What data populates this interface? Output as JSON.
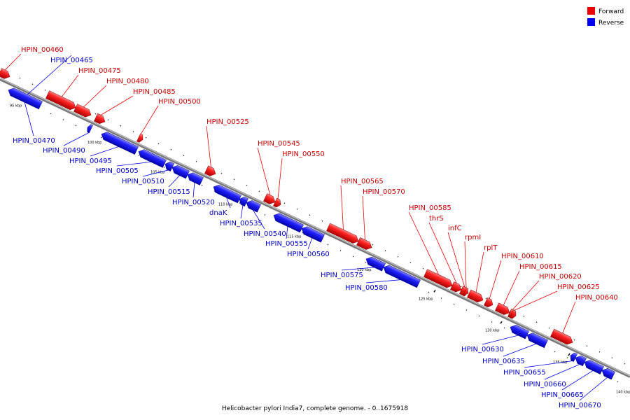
{
  "title": "Helicobacter pylori India7, complete genome. - 0..1675918",
  "legend": [
    {
      "label": "Forward",
      "color": "#ee0000"
    },
    {
      "label": "Reverse",
      "color": "#0000ee"
    }
  ],
  "colors": {
    "forward": "#ee0000",
    "reverse": "#0000ee"
  },
  "scale_labels": [
    "95 kbp",
    "100 kbp",
    "105 kbp",
    "110 kbp",
    "115 kbp",
    "120 kbp",
    "125 kbp",
    "130 kbp",
    "135 kbp",
    "140 kbp"
  ],
  "genes": [
    {
      "name": "HPIN_00460",
      "strand": "forward"
    },
    {
      "name": "HPIN_00465",
      "strand": "reverse"
    },
    {
      "name": "HPIN_00470",
      "strand": "reverse"
    },
    {
      "name": "HPIN_00475",
      "strand": "forward"
    },
    {
      "name": "HPIN_00480",
      "strand": "forward"
    },
    {
      "name": "HPIN_00485",
      "strand": "forward"
    },
    {
      "name": "HPIN_00490",
      "strand": "reverse"
    },
    {
      "name": "HPIN_00495",
      "strand": "reverse"
    },
    {
      "name": "HPIN_00500",
      "strand": "forward"
    },
    {
      "name": "HPIN_00505",
      "strand": "reverse"
    },
    {
      "name": "HPIN_00510",
      "strand": "reverse"
    },
    {
      "name": "HPIN_00515",
      "strand": "reverse"
    },
    {
      "name": "HPIN_00520",
      "strand": "reverse"
    },
    {
      "name": "HPIN_00525",
      "strand": "forward"
    },
    {
      "name": "dnaK",
      "strand": "reverse"
    },
    {
      "name": "HPIN_00535",
      "strand": "reverse"
    },
    {
      "name": "HPIN_00540",
      "strand": "reverse"
    },
    {
      "name": "HPIN_00545",
      "strand": "forward"
    },
    {
      "name": "HPIN_00550",
      "strand": "forward"
    },
    {
      "name": "HPIN_00555",
      "strand": "reverse"
    },
    {
      "name": "HPIN_00560",
      "strand": "reverse"
    },
    {
      "name": "HPIN_00565",
      "strand": "forward"
    },
    {
      "name": "HPIN_00570",
      "strand": "forward"
    },
    {
      "name": "HPIN_00575",
      "strand": "reverse"
    },
    {
      "name": "HPIN_00580",
      "strand": "reverse"
    },
    {
      "name": "HPIN_00585",
      "strand": "forward"
    },
    {
      "name": "thrS",
      "strand": "forward"
    },
    {
      "name": "infC",
      "strand": "forward"
    },
    {
      "name": "rpmI",
      "strand": "forward"
    },
    {
      "name": "rplT",
      "strand": "forward"
    },
    {
      "name": "HPIN_00610",
      "strand": "forward"
    },
    {
      "name": "HPIN_00615",
      "strand": "forward"
    },
    {
      "name": "HPIN_00620",
      "strand": "forward"
    },
    {
      "name": "HPIN_00625",
      "strand": "forward"
    },
    {
      "name": "HPIN_00630",
      "strand": "reverse"
    },
    {
      "name": "HPIN_00635",
      "strand": "reverse"
    },
    {
      "name": "HPIN_00640",
      "strand": "forward"
    },
    {
      "name": "HPIN_00655",
      "strand": "reverse"
    },
    {
      "name": "HPIN_00660",
      "strand": "reverse"
    },
    {
      "name": "HPIN_00665",
      "strand": "reverse"
    },
    {
      "name": "HPIN_00670",
      "strand": "reverse"
    }
  ]
}
